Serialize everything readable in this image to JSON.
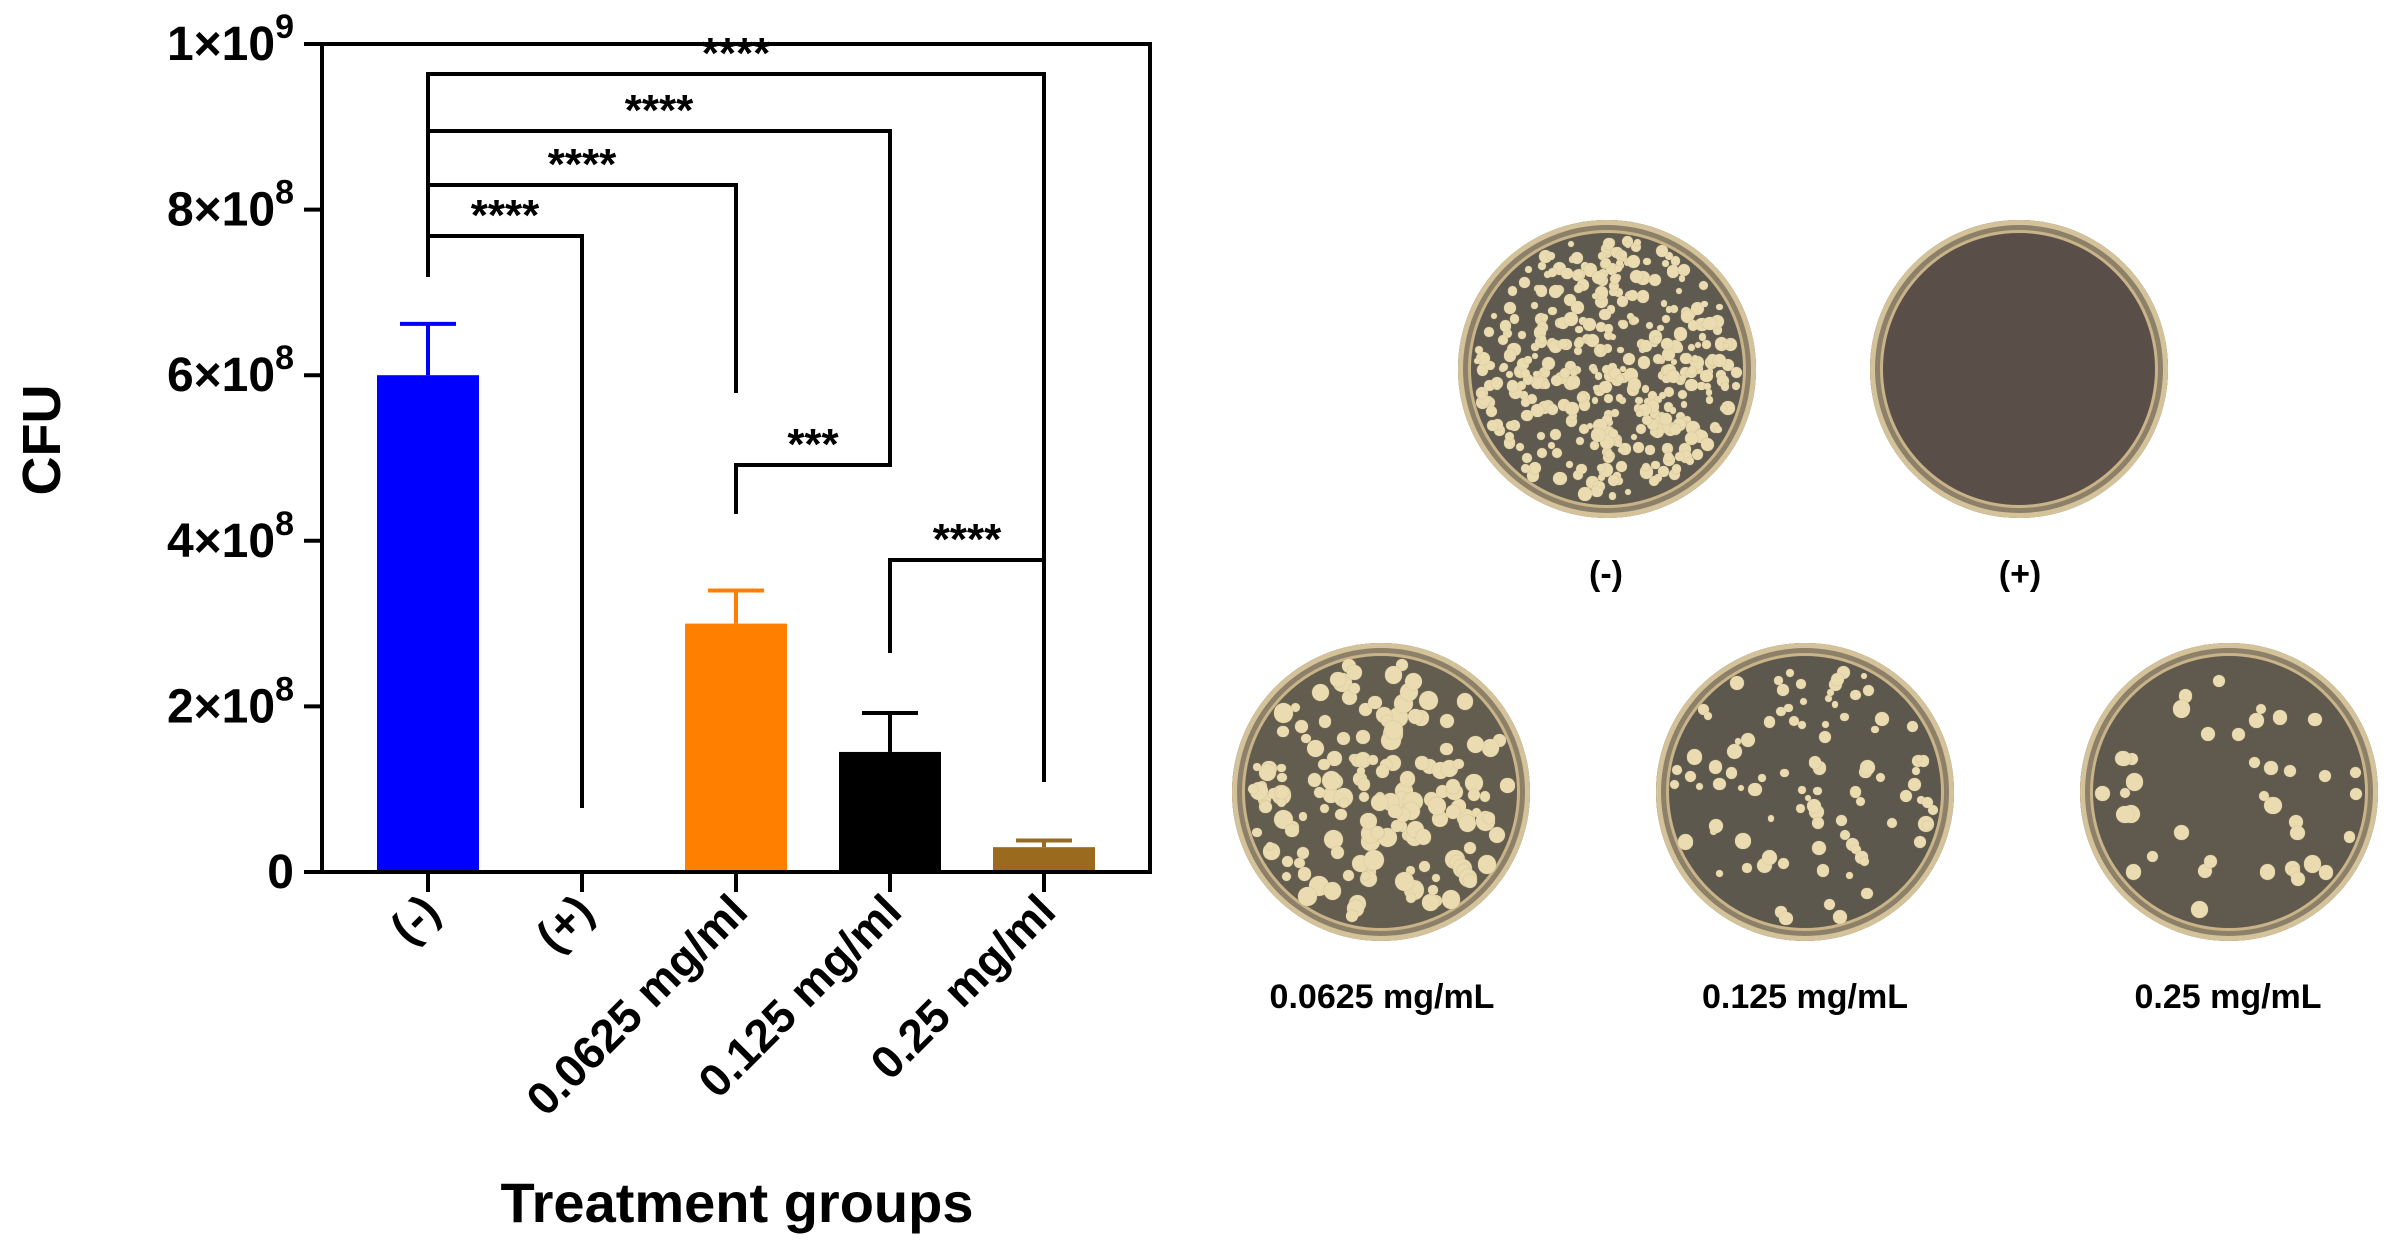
{
  "chart_data": {
    "type": "bar",
    "xlabel": "Treatment groups",
    "ylabel": "CFU",
    "ylim": [
      0,
      1000000000
    ],
    "yticks": [
      {
        "value": 0,
        "label": "0"
      },
      {
        "value": 200000000,
        "label": "2×10",
        "exp": "8"
      },
      {
        "value": 400000000,
        "label": "4×10",
        "exp": "8"
      },
      {
        "value": 600000000,
        "label": "6×10",
        "exp": "8"
      },
      {
        "value": 800000000,
        "label": "8×10",
        "exp": "8"
      },
      {
        "value": 1000000000,
        "label": "1×10",
        "exp": "9"
      }
    ],
    "categories": [
      "(-)",
      "(+)",
      "0.0625 mg/ml",
      "0.125 mg/ml",
      "0.25 mg/ml"
    ],
    "values": [
      600000000,
      0,
      300000000,
      145000000,
      30000000
    ],
    "errors": [
      62000000,
      0,
      40000000,
      47000000,
      8000000
    ],
    "colors": [
      "#0000ff",
      "#000000",
      "#ff8000",
      "#000000",
      "#9a6a1e"
    ],
    "significance": [
      {
        "from": 0,
        "to": 1,
        "label": "****"
      },
      {
        "from": 0,
        "to": 2,
        "label": "****"
      },
      {
        "from": 0,
        "to": 3,
        "label": "****"
      },
      {
        "from": 0,
        "to": 4,
        "label": "****"
      },
      {
        "from": 2,
        "to": 3,
        "label": "***"
      },
      {
        "from": 3,
        "to": 4,
        "label": "****"
      }
    ]
  },
  "plates": [
    {
      "label": "(-)",
      "density": "very-high"
    },
    {
      "label": "(+)",
      "density": "none"
    },
    {
      "label": "0.0625 mg/mL",
      "density": "high"
    },
    {
      "label": "0.125 mg/mL",
      "density": "medium"
    },
    {
      "label": "0.25 mg/mL",
      "density": "low"
    }
  ],
  "colors": {
    "plate_medium": "#5f584f",
    "colony": "#eadcb0",
    "plate_rim": "#d4c39a"
  }
}
